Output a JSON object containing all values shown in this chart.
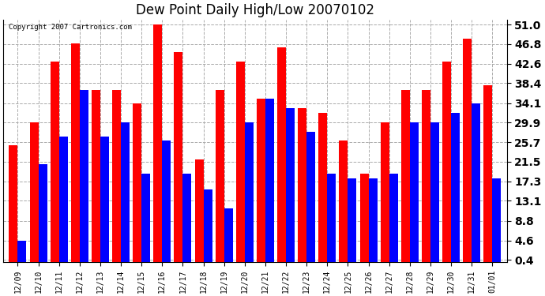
{
  "title": "Dew Point Daily High/Low 20070102",
  "copyright": "Copyright 2007 Cartronics.com",
  "dates": [
    "12/09",
    "12/10",
    "12/11",
    "12/12",
    "12/13",
    "12/14",
    "12/15",
    "12/16",
    "12/17",
    "12/18",
    "12/19",
    "12/20",
    "12/21",
    "12/22",
    "12/23",
    "12/24",
    "12/25",
    "12/26",
    "12/27",
    "12/28",
    "12/29",
    "12/30",
    "12/31",
    "01/01"
  ],
  "highs": [
    25.0,
    30.0,
    43.0,
    47.0,
    37.0,
    37.0,
    34.0,
    51.0,
    45.0,
    22.0,
    37.0,
    43.0,
    35.0,
    46.0,
    33.0,
    32.0,
    26.0,
    19.0,
    30.0,
    37.0,
    37.0,
    43.0,
    48.0,
    38.0
  ],
  "lows": [
    4.6,
    21.0,
    27.0,
    37.0,
    27.0,
    30.0,
    19.0,
    26.0,
    19.0,
    15.5,
    11.5,
    30.0,
    35.0,
    33.0,
    28.0,
    19.0,
    18.0,
    18.0,
    19.0,
    30.0,
    30.0,
    32.0,
    34.0,
    18.0
  ],
  "high_color": "#ff0000",
  "low_color": "#0000ff",
  "bg_color": "#ffffff",
  "plot_bg_color": "#ffffff",
  "grid_color": "#aaaaaa",
  "yticks": [
    0.4,
    4.6,
    8.8,
    13.1,
    17.3,
    21.5,
    25.7,
    29.9,
    34.1,
    38.4,
    42.6,
    46.8,
    51.0
  ],
  "ytick_labels": [
    "0.4",
    "4.6",
    "8.8",
    "13.1",
    "17.3",
    "21.5",
    "25.7",
    "29.9",
    "34.1",
    "38.4",
    "42.6",
    "46.8",
    "51.0"
  ],
  "ylim": [
    0.0,
    52.0
  ],
  "bar_width": 0.42,
  "title_fontsize": 12,
  "ytick_fontsize": 10,
  "xtick_fontsize": 7
}
